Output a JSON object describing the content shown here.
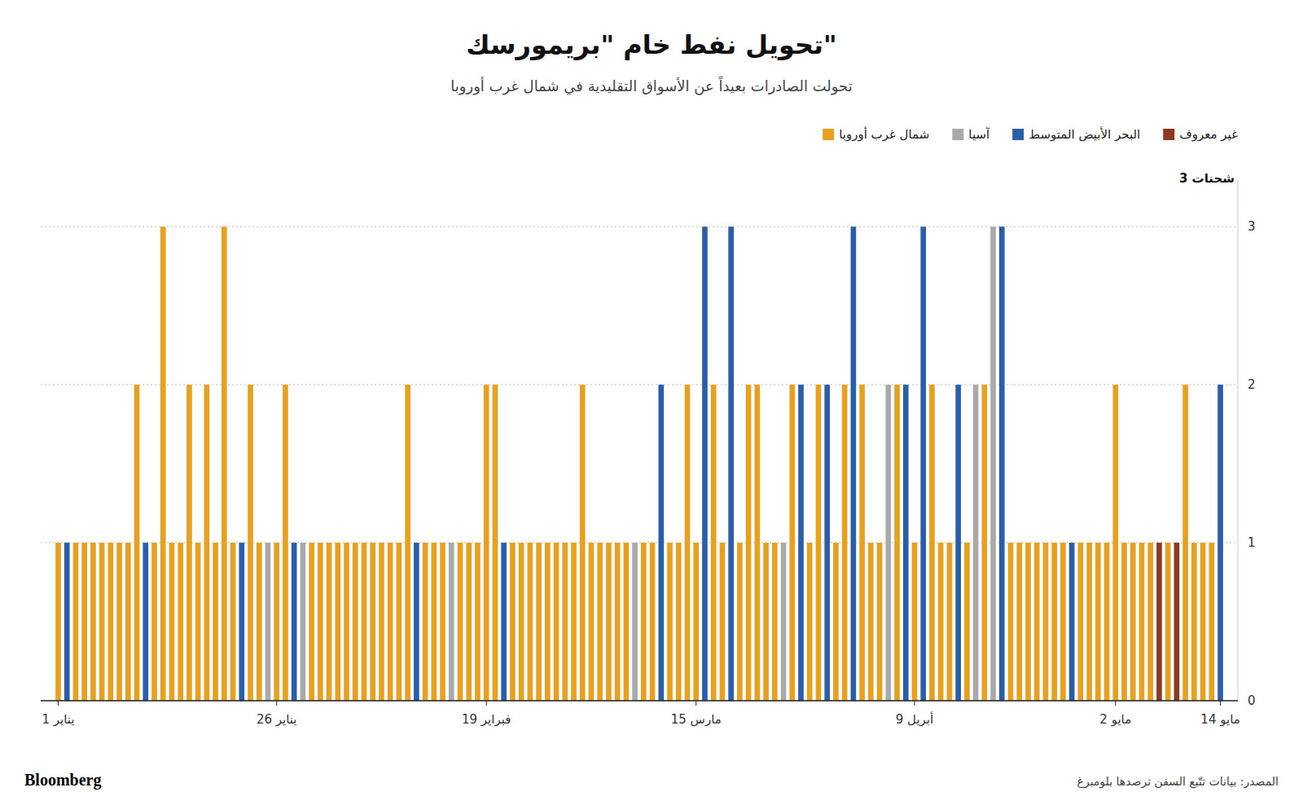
{
  "chart_data": {
    "type": "bar",
    "title": "تحويل نفط خام \"بريمورسك\"",
    "subtitle": "تحولت الصادرات بعيداً عن الأسواق التقليدية في شمال غرب أوروبا",
    "ylabel": "3 شحنات",
    "annotations": [
      "Bloomberg",
      "المصدر: بيانات تتّبع السفن ترصدها بلومبرغ"
    ],
    "categories": [
      "1 يناير",
      null,
      null,
      null,
      null,
      null,
      null,
      null,
      null,
      null,
      null,
      null,
      null,
      null,
      null,
      null,
      null,
      null,
      null,
      null,
      null,
      null,
      null,
      null,
      null,
      "26 يناير",
      null,
      null,
      null,
      null,
      null,
      null,
      null,
      null,
      null,
      null,
      null,
      null,
      null,
      null,
      null,
      null,
      null,
      null,
      null,
      null,
      null,
      null,
      null,
      "19 فبراير",
      null,
      null,
      null,
      null,
      null,
      null,
      null,
      null,
      null,
      null,
      null,
      null,
      null,
      null,
      null,
      null,
      null,
      null,
      null,
      null,
      null,
      null,
      null,
      "15 مارس",
      null,
      null,
      null,
      null,
      null,
      null,
      null,
      null,
      null,
      null,
      null,
      null,
      null,
      null,
      null,
      null,
      null,
      null,
      null,
      null,
      null,
      null,
      null,
      null,
      "9 أبريل",
      null,
      null,
      null,
      null,
      null,
      null,
      null,
      null,
      null,
      null,
      null,
      null,
      null,
      null,
      null,
      null,
      null,
      null,
      null,
      null,
      null,
      null,
      "2 مايو",
      null,
      null,
      null,
      null,
      null,
      null,
      null,
      null,
      null,
      null,
      null,
      "14 مايو"
    ],
    "series": [
      {
        "name": "شمال غرب أوروبا",
        "color": "#E8A020",
        "values": [
          1,
          null,
          1,
          1,
          1,
          1,
          1,
          1,
          1,
          2,
          null,
          1,
          3,
          1,
          1,
          2,
          1,
          2,
          1,
          3,
          1,
          null,
          2,
          1,
          null,
          1,
          2,
          null,
          null,
          1,
          1,
          1,
          1,
          1,
          1,
          1,
          1,
          1,
          1,
          1,
          2,
          null,
          1,
          1,
          1,
          null,
          1,
          1,
          1,
          2,
          2,
          null,
          1,
          1,
          1,
          1,
          1,
          1,
          1,
          1,
          2,
          1,
          1,
          1,
          1,
          1,
          null,
          1,
          1,
          null,
          1,
          1,
          2,
          1,
          null,
          2,
          1,
          null,
          1,
          2,
          2,
          1,
          1,
          null,
          2,
          null,
          1,
          2,
          null,
          1,
          2,
          null,
          2,
          1,
          1,
          null,
          2,
          null,
          1,
          null,
          2,
          1,
          1,
          null,
          1,
          null,
          2,
          null,
          null,
          1,
          1,
          1,
          1,
          1,
          1,
          1,
          null,
          1,
          1,
          1,
          1,
          2,
          1,
          1,
          1,
          1,
          null,
          1,
          null,
          2,
          1,
          1,
          1,
          null
        ]
      },
      {
        "name": "آسيا",
        "color": "#AAAAAA",
        "values": [
          null,
          null,
          null,
          null,
          null,
          null,
          null,
          null,
          null,
          null,
          null,
          null,
          null,
          null,
          null,
          null,
          null,
          null,
          null,
          null,
          null,
          null,
          null,
          null,
          1,
          null,
          null,
          null,
          1,
          null,
          null,
          null,
          null,
          null,
          null,
          null,
          null,
          null,
          null,
          null,
          null,
          null,
          null,
          null,
          null,
          1,
          null,
          null,
          null,
          null,
          null,
          null,
          null,
          null,
          null,
          null,
          null,
          null,
          null,
          null,
          null,
          null,
          null,
          null,
          null,
          null,
          1,
          null,
          null,
          null,
          null,
          null,
          null,
          null,
          null,
          null,
          null,
          null,
          null,
          null,
          null,
          null,
          null,
          1,
          null,
          null,
          null,
          null,
          null,
          null,
          null,
          null,
          null,
          null,
          null,
          2,
          null,
          null,
          null,
          null,
          null,
          null,
          null,
          null,
          null,
          2,
          null,
          3,
          null,
          null,
          null,
          null,
          null,
          null,
          null,
          null,
          null,
          null,
          null,
          null,
          null,
          null,
          null,
          null,
          null,
          null,
          null,
          null,
          null,
          null,
          null,
          null,
          null,
          null
        ]
      },
      {
        "name": "البحر الأبيض المتوسط",
        "color": "#2B5EAA",
        "values": [
          null,
          1,
          null,
          null,
          null,
          null,
          null,
          null,
          null,
          null,
          1,
          null,
          null,
          null,
          null,
          null,
          null,
          null,
          null,
          null,
          null,
          1,
          null,
          null,
          null,
          null,
          null,
          1,
          null,
          null,
          null,
          null,
          null,
          null,
          null,
          null,
          null,
          null,
          null,
          null,
          null,
          1,
          null,
          null,
          null,
          null,
          null,
          null,
          null,
          null,
          null,
          1,
          null,
          null,
          null,
          null,
          null,
          null,
          null,
          null,
          null,
          null,
          null,
          null,
          null,
          null,
          null,
          null,
          null,
          2,
          null,
          null,
          null,
          null,
          3,
          null,
          null,
          3,
          null,
          null,
          null,
          null,
          null,
          null,
          null,
          2,
          null,
          null,
          2,
          null,
          null,
          3,
          null,
          null,
          null,
          null,
          null,
          2,
          null,
          3,
          null,
          null,
          null,
          2,
          null,
          null,
          null,
          null,
          3,
          null,
          null,
          null,
          null,
          null,
          null,
          null,
          1,
          null,
          null,
          null,
          null,
          null,
          null,
          null,
          null,
          null,
          null,
          null,
          null,
          null,
          null,
          null,
          null,
          2
        ]
      },
      {
        "name": "غير معروف",
        "color": "#8B3A20",
        "values": [
          null,
          null,
          null,
          null,
          null,
          null,
          null,
          null,
          null,
          null,
          null,
          null,
          null,
          null,
          null,
          null,
          null,
          null,
          null,
          null,
          null,
          null,
          null,
          null,
          null,
          null,
          null,
          null,
          null,
          null,
          null,
          null,
          null,
          null,
          null,
          null,
          null,
          null,
          null,
          null,
          null,
          null,
          null,
          null,
          null,
          null,
          null,
          null,
          null,
          null,
          null,
          null,
          null,
          null,
          null,
          null,
          null,
          null,
          null,
          null,
          null,
          null,
          null,
          null,
          null,
          null,
          null,
          null,
          null,
          null,
          null,
          null,
          null,
          null,
          null,
          null,
          null,
          null,
          null,
          null,
          null,
          null,
          null,
          null,
          null,
          null,
          null,
          null,
          null,
          null,
          null,
          null,
          null,
          null,
          null,
          null,
          null,
          null,
          null,
          null,
          null,
          null,
          null,
          null,
          null,
          null,
          null,
          null,
          null,
          null,
          null,
          null,
          null,
          null,
          null,
          null,
          null,
          null,
          null,
          null,
          null,
          null,
          null,
          null,
          null,
          null,
          1,
          null,
          1,
          null,
          null,
          null,
          null,
          null
        ]
      }
    ],
    "stacked": true,
    "ylim": [
      0,
      3.3
    ],
    "yticks": [
      0,
      1,
      2,
      3
    ],
    "grid": true,
    "legend": "upper right"
  }
}
